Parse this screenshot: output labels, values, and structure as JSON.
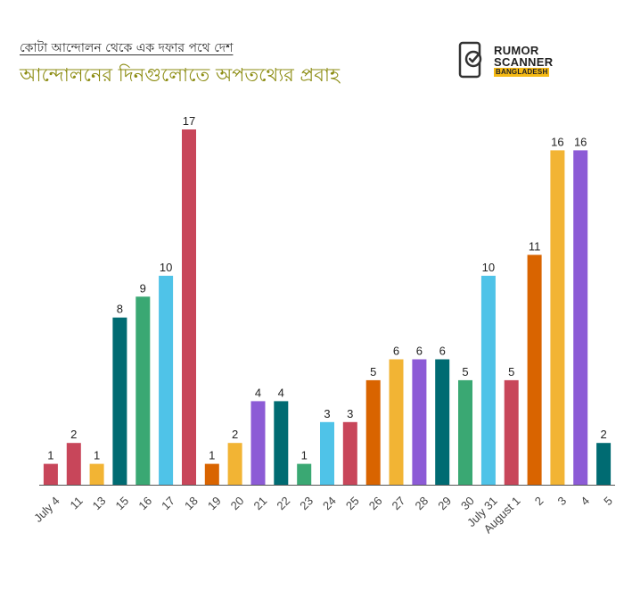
{
  "header": {
    "subtitle": "কোটা আন্দোলন থেকে এক দফার পথে দেশ",
    "title": "আন্দোলনের দিনগুলোতে অপতথ্যের প্রবাহ"
  },
  "logo": {
    "line1": "RUMOR",
    "line2": "SCANNER",
    "line3": "BANGLADESH",
    "icon": "phone-check-icon"
  },
  "chart_data": {
    "type": "bar",
    "categories": [
      "July 4",
      "11",
      "13",
      "15",
      "16",
      "17",
      "18",
      "19",
      "20",
      "21",
      "22",
      "23",
      "24",
      "25",
      "26",
      "27",
      "28",
      "29",
      "30",
      "July 31",
      "August 1",
      "2",
      "3",
      "4",
      "5"
    ],
    "values": [
      1,
      2,
      1,
      8,
      9,
      10,
      17,
      1,
      2,
      4,
      4,
      1,
      3,
      3,
      5,
      6,
      6,
      6,
      5,
      10,
      5,
      11,
      16,
      16,
      2
    ],
    "colors": [
      "#c8465a",
      "#c8465a",
      "#f2b434",
      "#006b72",
      "#3aa873",
      "#4fc3e8",
      "#c8465a",
      "#d96400",
      "#f2b434",
      "#8c5bd6",
      "#006b72",
      "#3aa873",
      "#4fc3e8",
      "#c8465a",
      "#d96400",
      "#f2b434",
      "#8c5bd6",
      "#006b72",
      "#3aa873",
      "#4fc3e8",
      "#c8465a",
      "#d96400",
      "#f2b434",
      "#8c5bd6",
      "#006b72"
    ],
    "ylim": [
      0,
      17
    ],
    "data_labels": true,
    "grid": false,
    "legend": "none"
  }
}
